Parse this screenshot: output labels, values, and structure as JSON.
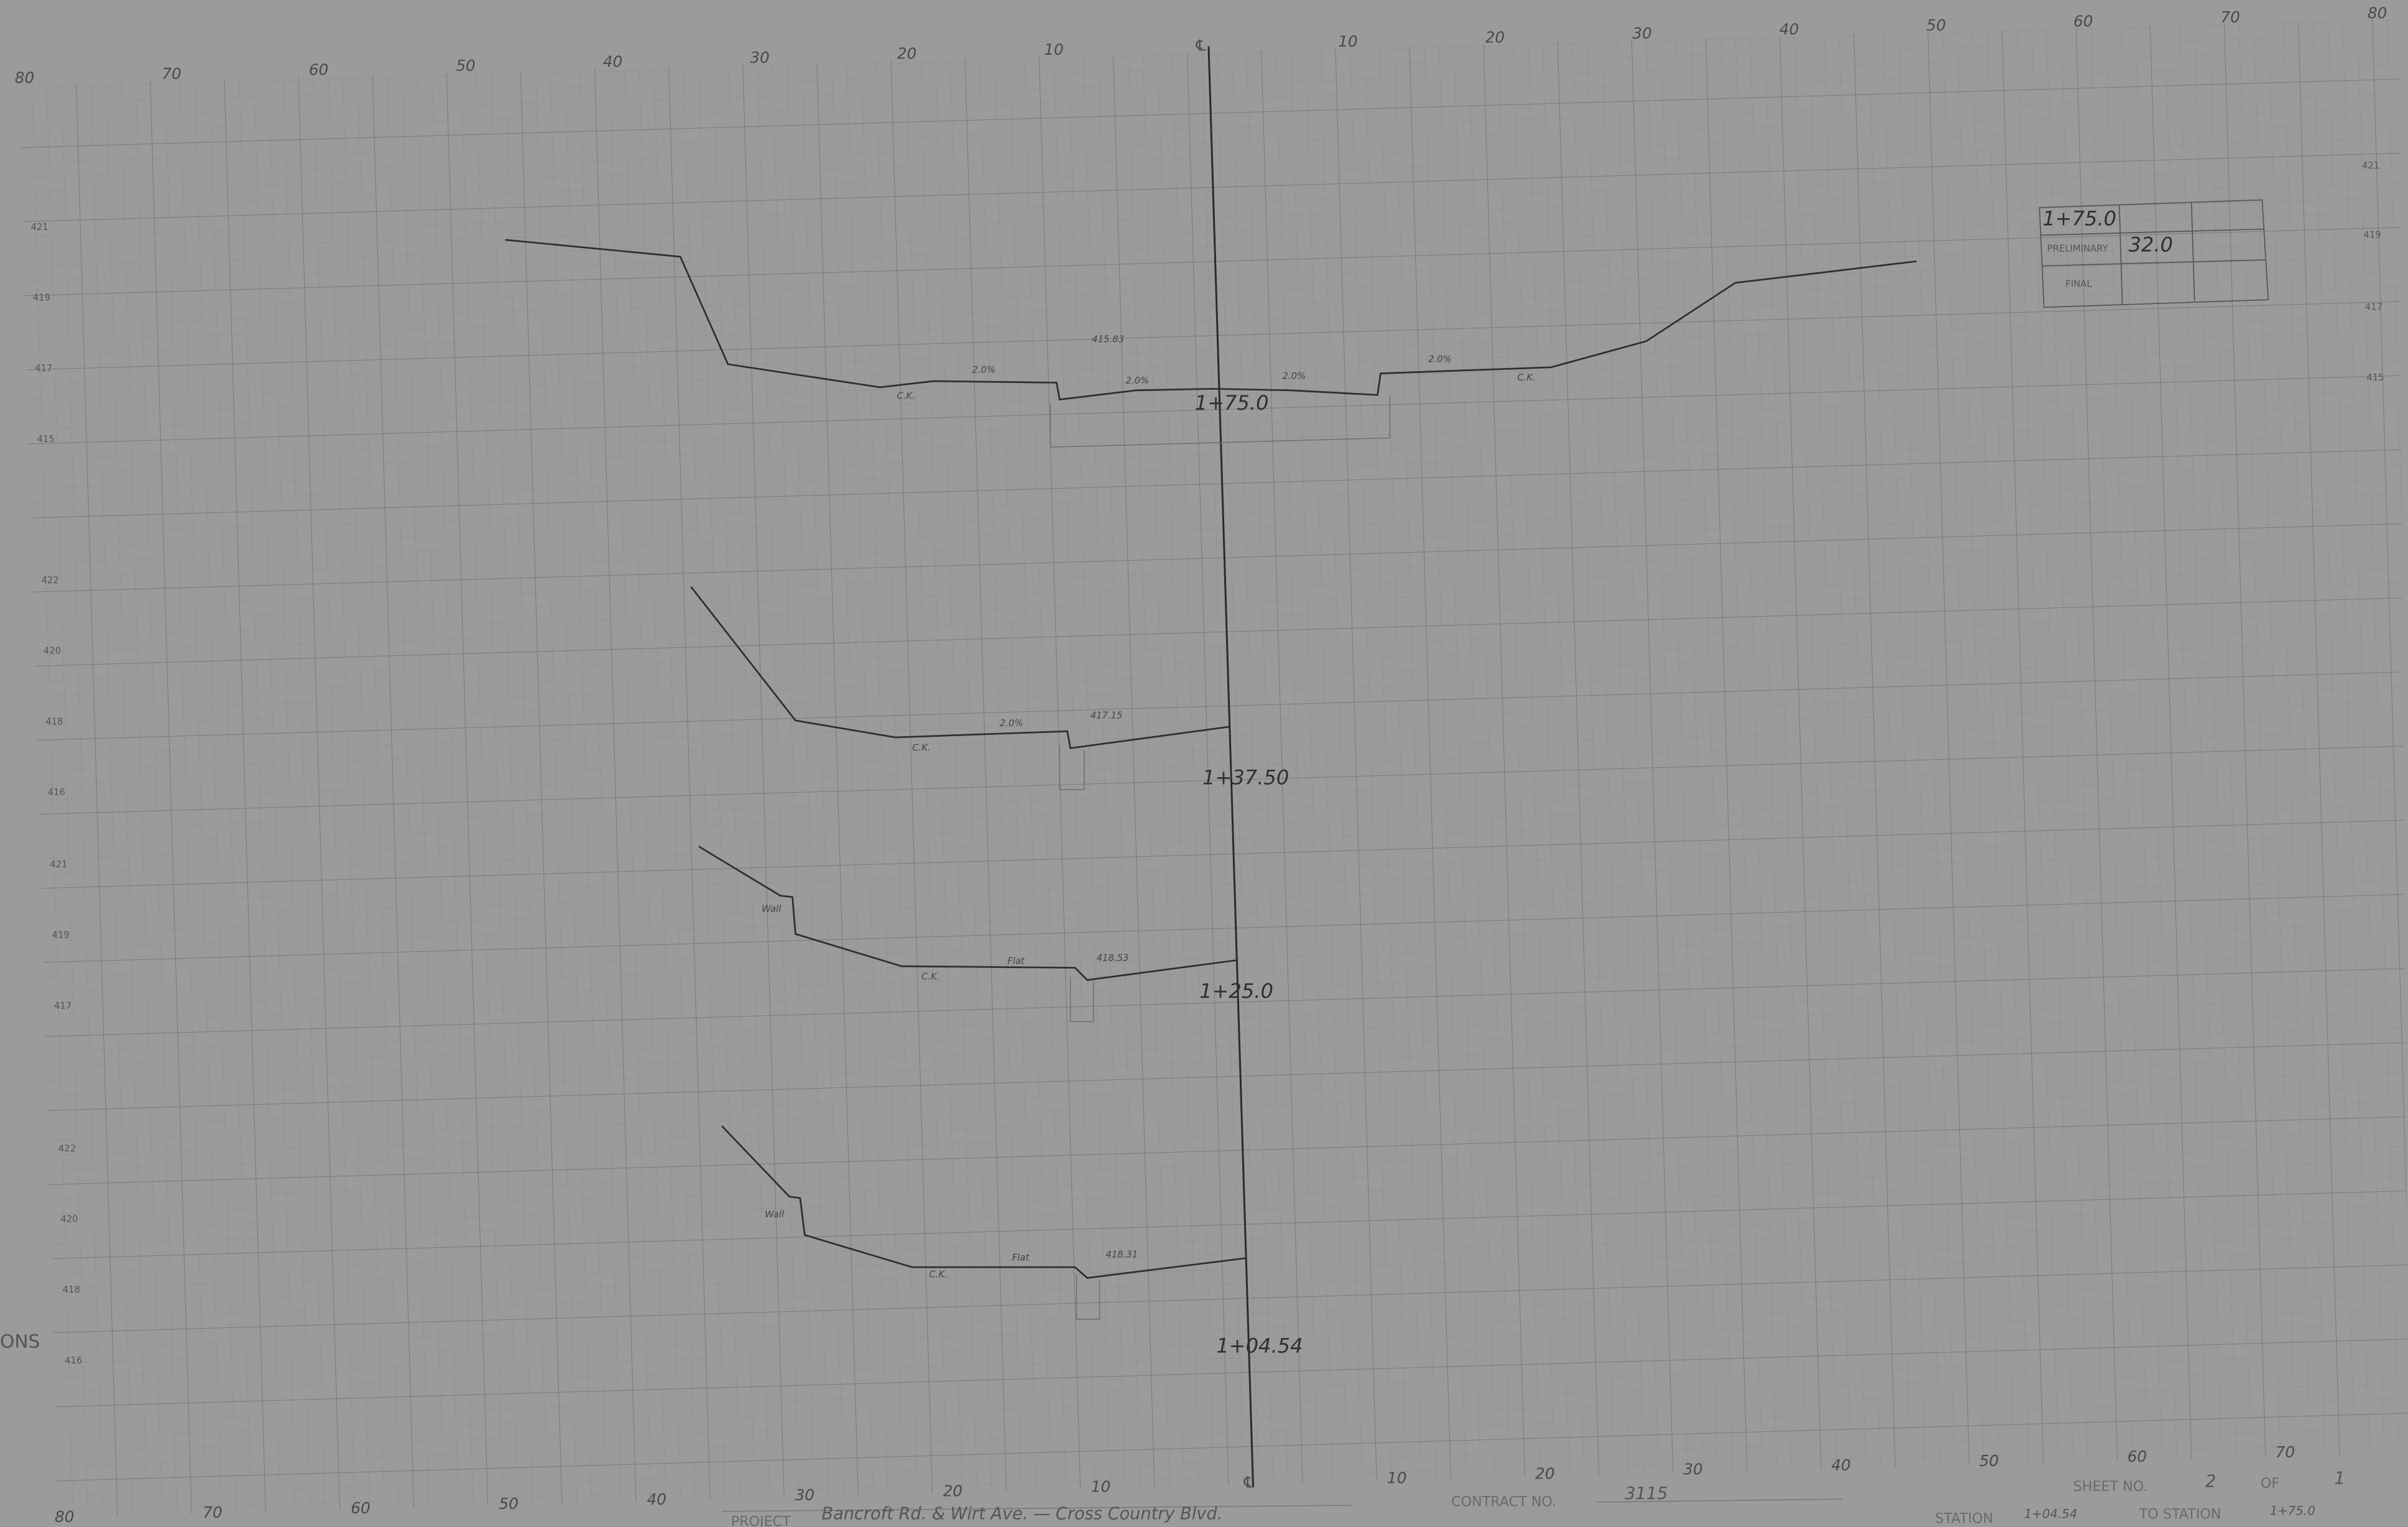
{
  "top_axis": [
    "80",
    "70",
    "60",
    "50",
    "40",
    "30",
    "20",
    "10",
    "℄",
    "10",
    "20",
    "30",
    "40",
    "50",
    "60",
    "70",
    "80"
  ],
  "bottom_axis": [
    "80",
    "70",
    "60",
    "50",
    "40",
    "30",
    "20",
    "10",
    "℄",
    "10",
    "20",
    "30",
    "40",
    "50",
    "60",
    "70"
  ],
  "left_elevations": [
    "421",
    "419",
    "417",
    "415",
    "422",
    "420",
    "418",
    "416",
    "421",
    "419",
    "417",
    "422",
    "420",
    "418",
    "416"
  ],
  "right_elevations": [
    "421",
    "419",
    "417",
    "415"
  ],
  "sections": [
    {
      "station": "1+75.0",
      "notes": [
        "C.K.",
        "2.0%",
        "415.83",
        "2.0%",
        "2.0%",
        "2.0%",
        "C.K."
      ]
    },
    {
      "station": "1+37.50",
      "notes": [
        "C.K.",
        "2.0%",
        "417.15"
      ]
    },
    {
      "station": "1+25.0",
      "notes": [
        "Wall",
        "C.K.",
        "Flat",
        "418.53"
      ]
    },
    {
      "station": "1+04.54",
      "notes": [
        "Wall",
        "C.K.",
        "Flat",
        "418.31"
      ]
    }
  ],
  "table": {
    "station": "1+75.0",
    "preliminary_label": "PRELIMINARY",
    "preliminary_value": "32.0",
    "final_label": "FINAL"
  },
  "left_margin": "ONS",
  "footer": {
    "project_label": "PROJECT",
    "project": "Bancroft Rd. & Wirt Ave. — Cross Country Blvd.",
    "contract_label": "CONTRACT NO.",
    "contract": "3115",
    "sheet_label": "SHEET NO.",
    "sheet": "2",
    "of_label": "OF",
    "of": "1",
    "station_label": "STATION",
    "station_from": "1+04.54",
    "to_station_label": "TO STATION",
    "station_to": "1+75.0"
  }
}
